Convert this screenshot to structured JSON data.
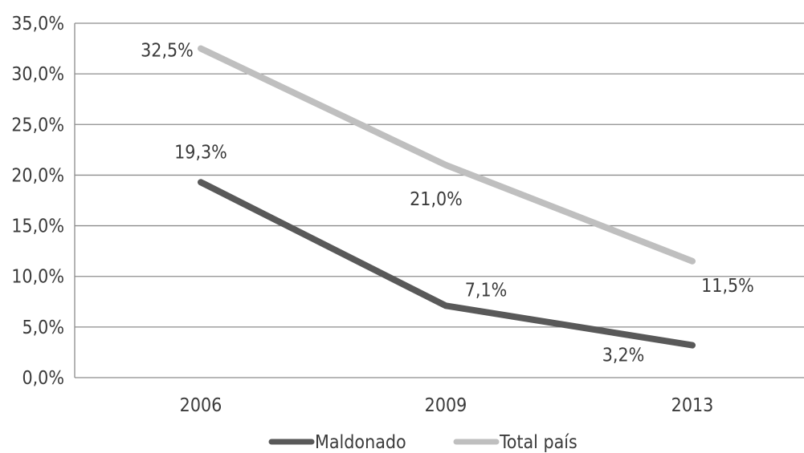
{
  "chart_data": {
    "type": "line",
    "categories": [
      "2006",
      "2009",
      "2013"
    ],
    "y_ticks": [
      "0,0%",
      "5,0%",
      "10,0%",
      "15,0%",
      "20,0%",
      "25,0%",
      "30,0%",
      "35,0%"
    ],
    "ylim": [
      0,
      35
    ],
    "grid": true,
    "legend_position": "bottom",
    "series": [
      {
        "name": "Maldonado",
        "values": [
          19.3,
          7.1,
          3.2
        ],
        "labels": [
          "19,3%",
          "7,1%",
          "3,2%"
        ],
        "color": "#595959"
      },
      {
        "name": "Total país",
        "values": [
          32.5,
          21.0,
          11.5
        ],
        "labels": [
          "32,5%",
          "21,0%",
          "11,5%"
        ],
        "color": "#bfbfbf"
      }
    ]
  }
}
